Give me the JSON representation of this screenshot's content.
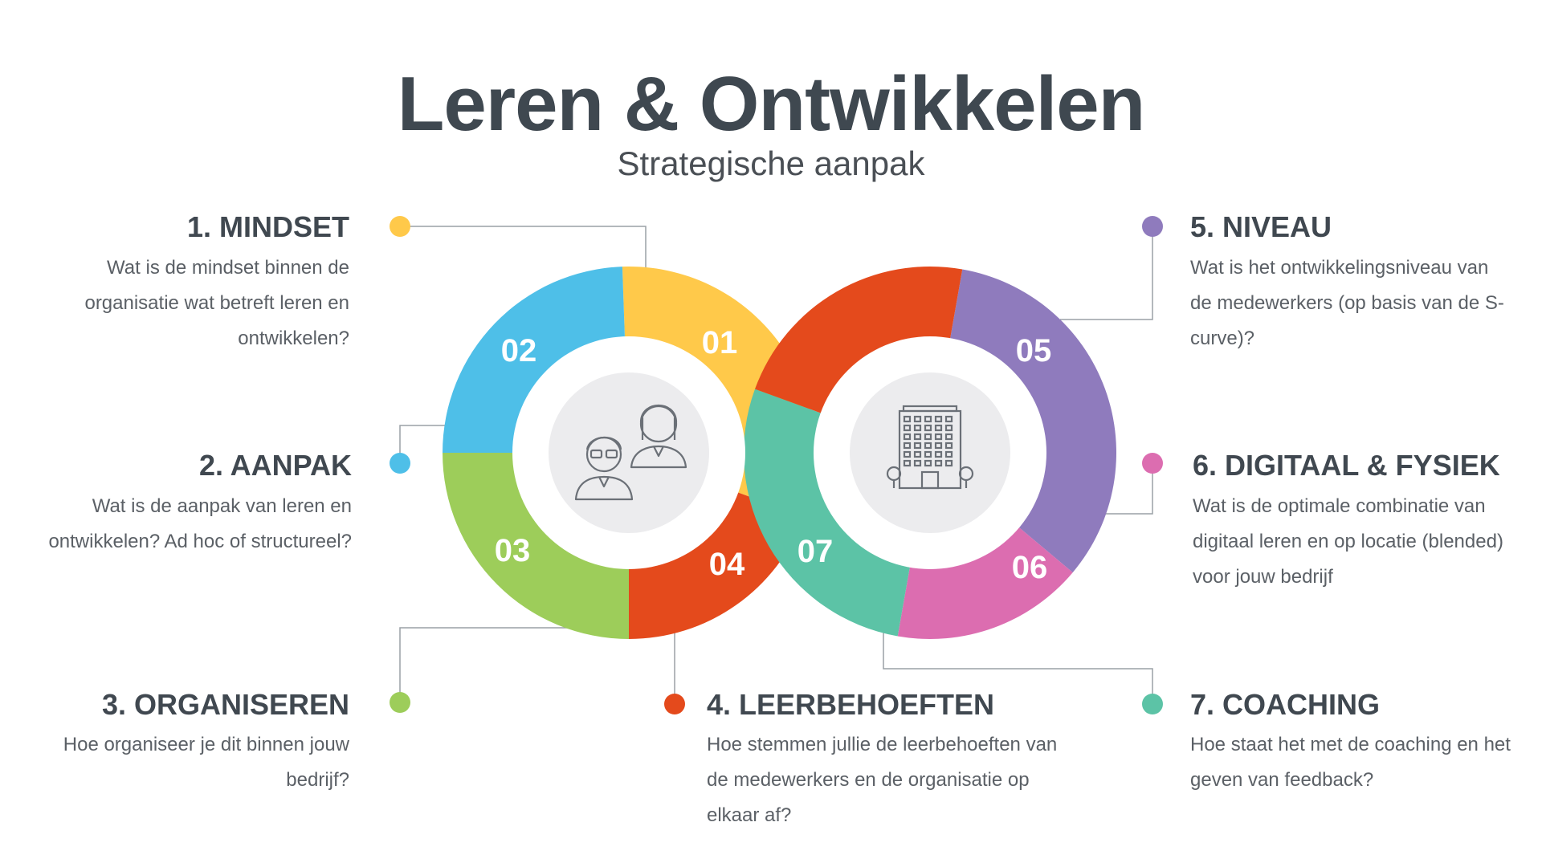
{
  "header": {
    "title": "Leren & Ontwikkelen",
    "subtitle": "Strategische aanpak"
  },
  "colors": {
    "s1": "#ffc94a",
    "s2": "#4ebfe8",
    "s3": "#9dcd5a",
    "s4": "#e44a1c",
    "s5": "#8f7bbd",
    "s6": "#dc6db0",
    "s7": "#5cc3a6",
    "text": "#404850"
  },
  "segments": [
    {
      "number": "01",
      "title": "1. MINDSET",
      "description": "Wat is de mindset binnen de organisatie wat betreft leren en ontwikkelen?"
    },
    {
      "number": "02",
      "title": "2. AANPAK",
      "description": "Wat is de aanpak van leren en ontwikkelen? Ad hoc of structureel?"
    },
    {
      "number": "03",
      "title": "3. ORGANISEREN",
      "description": "Hoe organiseer je dit binnen jouw bedrijf?"
    },
    {
      "number": "04",
      "title": "4. LEERBEHOEFTEN",
      "description": "Hoe stemmen jullie de leerbehoeften van de medewerkers en de organisatie op elkaar af?"
    },
    {
      "number": "05",
      "title": "5. NIVEAU",
      "description": "Wat is het ontwikkelingsniveau van de medewerkers (op basis van de S-curve)?"
    },
    {
      "number": "06",
      "title": "6. DIGITAAL & FYSIEK",
      "description": "Wat is de optimale combinatie van digitaal leren en op locatie (blended) voor jouw bedrijf"
    },
    {
      "number": "07",
      "title": "7. COACHING",
      "description": "Hoe staat het met de coaching en het geven van feedback?"
    }
  ],
  "icons": {
    "left_center": "people-icon",
    "right_center": "building-icon"
  }
}
